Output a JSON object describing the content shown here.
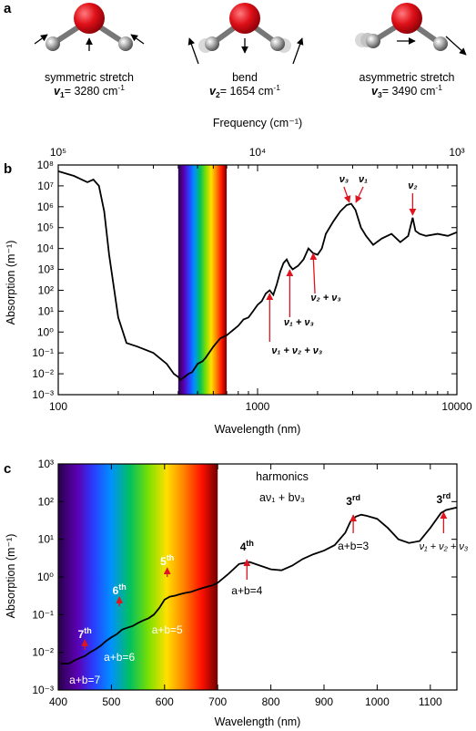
{
  "panel_a": {
    "letter": "a",
    "modes": [
      {
        "name": "symmetric stretch",
        "sym": "v",
        "sub": "1",
        "eq": "= 3280 cm",
        "exp": "-1"
      },
      {
        "name": "bend",
        "sym": "v",
        "sub": "2",
        "eq": "= 1654 cm",
        "exp": "-1"
      },
      {
        "name": "asymmetric stretch",
        "sym": "v",
        "sub": "3",
        "eq": "= 3490 cm",
        "exp": "-1"
      }
    ]
  },
  "colors": {
    "oxygen": "#d8141e",
    "hydrogen": "#9a9a9a",
    "arrow": "#e0141e",
    "curve": "#000000"
  },
  "chart_data": [
    {
      "type": "line",
      "panel": "b",
      "xscale": "log",
      "yscale": "log",
      "xlabel": "Wavelength (nm)",
      "ylabel": "Absorption (m⁻¹)",
      "top_axis_label": "Frequency (cm⁻¹)",
      "xlim": [
        100,
        10000
      ],
      "ylim": [
        0.001,
        100000000
      ],
      "x_ticks": [
        "100",
        "1000",
        "10000"
      ],
      "top_ticks": [
        "10⁵",
        "10⁴",
        "10³"
      ],
      "y_ticks": [
        "10⁻³",
        "10⁻²",
        "10⁻¹",
        "10⁰",
        "10¹",
        "10²",
        "10³",
        "10⁴",
        "10⁵",
        "10⁶",
        "10⁷",
        "10⁸"
      ],
      "visible_band_nm": [
        400,
        700
      ],
      "series": [
        {
          "x": [
            100,
            120,
            140,
            150,
            160,
            170,
            180,
            200,
            220,
            250,
            300,
            350,
            380,
            400,
            410,
            420,
            430,
            450,
            470,
            500,
            530,
            550,
            600,
            650,
            700,
            750,
            800,
            850,
            900,
            950,
            1000,
            1050,
            1100,
            1150,
            1200,
            1250,
            1300,
            1350,
            1400,
            1450,
            1500,
            1600,
            1700,
            1800,
            1900,
            2000,
            2100,
            2200,
            2400,
            2600,
            2800,
            2950,
            3100,
            3300,
            3500,
            3800,
            4200,
            4700,
            5200,
            5700,
            6000,
            6200,
            6500,
            7000,
            8000,
            9000,
            10000
          ],
          "y": [
            50000000.0,
            30000000.0,
            15000000.0,
            20000000.0,
            10000000.0,
            600000.0,
            5000.0,
            5,
            0.3,
            0.2,
            0.1,
            0.03,
            0.01,
            0.007,
            0.005,
            0.006,
            0.007,
            0.01,
            0.012,
            0.03,
            0.04,
            0.06,
            0.2,
            0.5,
            0.7,
            1.2,
            2,
            4,
            5,
            10,
            20,
            30,
            70,
            100,
            60,
            200,
            800,
            2000,
            3000,
            1500,
            1000,
            1500,
            3000,
            10000,
            6000,
            5000,
            10000,
            50000,
            200000.0,
            600000.0,
            1200000.0,
            1400000.0,
            700000.0,
            100000.0,
            40000.0,
            15000.0,
            30000.0,
            50000.0,
            20000.0,
            40000.0,
            300000.0,
            70000.0,
            50000.0,
            40000.0,
            50000.0,
            40000.0,
            60000.0
          ]
        }
      ],
      "annotations": [
        {
          "sym": [
            "v",
            "3"
          ],
          "plain": "",
          "x": 2950
        },
        {
          "sym": [
            "v",
            "1"
          ],
          "plain": "",
          "x": 3050
        },
        {
          "sym": [
            "v",
            "2"
          ],
          "plain": "",
          "x": 6000
        },
        {
          "sym": [
            "v",
            "2"
          ],
          "plus": [
            "v",
            "3"
          ],
          "label": "ν₂ + ν₃",
          "x": 1900
        },
        {
          "label": "ν₁ + ν₃",
          "x": 1450
        },
        {
          "label": "ν₁ + ν₂ + ν₃",
          "x": 1150
        }
      ]
    },
    {
      "type": "line",
      "panel": "c",
      "xscale": "linear",
      "yscale": "log",
      "xlabel": "Wavelength (nm)",
      "ylabel": "Absorption (m⁻¹)",
      "xlim": [
        400,
        1150
      ],
      "ylim": [
        0.001,
        1000
      ],
      "x_ticks": [
        "400",
        "500",
        "600",
        "700",
        "800",
        "900",
        "1000",
        "1100"
      ],
      "y_ticks": [
        "10⁻³",
        "10⁻²",
        "10⁻¹",
        "10⁰",
        "10¹",
        "10²",
        "10³"
      ],
      "visible_band_nm": [
        400,
        700
      ],
      "legend_text": "harmonics",
      "formula": "aν₁ + bν₃",
      "series": [
        {
          "x": [
            405,
            420,
            430,
            440,
            450,
            460,
            470,
            480,
            490,
            500,
            510,
            520,
            530,
            540,
            550,
            560,
            570,
            580,
            590,
            600,
            610,
            620,
            630,
            640,
            650,
            660,
            670,
            680,
            690,
            700,
            720,
            740,
            760,
            780,
            800,
            820,
            840,
            860,
            880,
            900,
            920,
            940,
            950,
            960,
            970,
            980,
            1000,
            1020,
            1040,
            1060,
            1080,
            1100,
            1120,
            1130,
            1150
          ],
          "y": [
            0.005,
            0.005,
            0.006,
            0.007,
            0.008,
            0.01,
            0.012,
            0.015,
            0.02,
            0.025,
            0.03,
            0.04,
            0.045,
            0.05,
            0.06,
            0.07,
            0.08,
            0.1,
            0.15,
            0.25,
            0.3,
            0.32,
            0.35,
            0.38,
            0.4,
            0.45,
            0.5,
            0.55,
            0.6,
            0.7,
            1.2,
            2.2,
            2.5,
            2,
            1.6,
            1.5,
            2,
            3,
            4,
            5,
            7,
            15,
            30,
            40,
            45,
            42,
            35,
            20,
            10,
            8,
            9,
            20,
            50,
            60,
            70
          ]
        }
      ],
      "harmonic_labels": [
        {
          "ord": "7",
          "sup": "th",
          "ab": "a+b=7",
          "x": 450
        },
        {
          "ord": "6",
          "sup": "th",
          "ab": "a+b=6",
          "x": 515
        },
        {
          "ord": "5",
          "sup": "th",
          "ab": "a+b=5",
          "x": 605
        },
        {
          "ord": "4",
          "sup": "th",
          "ab": "a+b=4",
          "x": 755
        },
        {
          "ord": "3",
          "sup": "rd",
          "ab": "a+b=3",
          "x": 955
        },
        {
          "ord": "3",
          "sup": "rd",
          "ab": "ν₁ + ν₂ + ν₃",
          "x": 1125
        }
      ]
    }
  ]
}
